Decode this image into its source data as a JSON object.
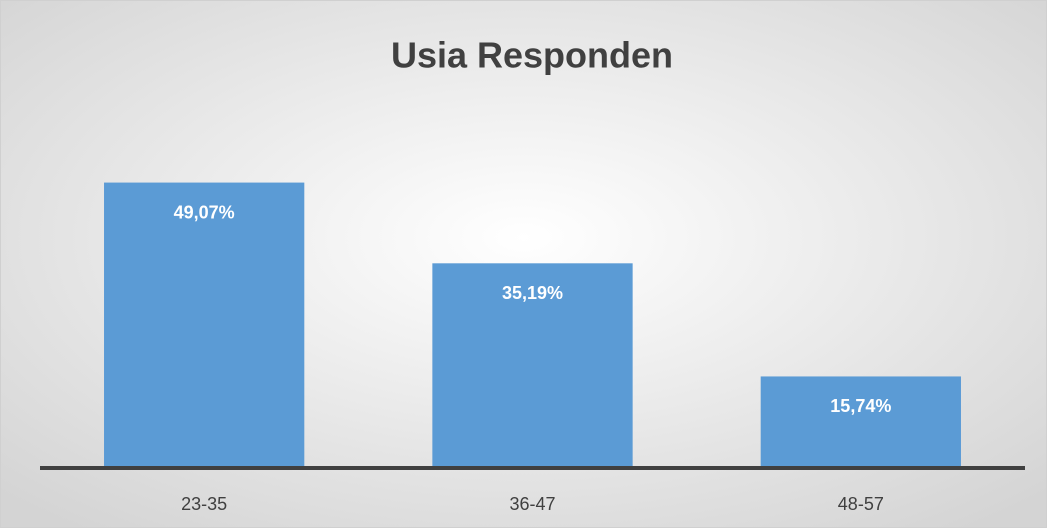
{
  "chart_data": {
    "type": "bar",
    "title": "Usia Responden",
    "categories": [
      "23-35",
      "36-47",
      "48-57"
    ],
    "values": [
      49.07,
      35.19,
      15.74
    ],
    "value_labels": [
      "49,07%",
      "35,19%",
      "15,74%"
    ],
    "color": "#5b9bd5",
    "ylim": [
      0,
      60
    ]
  }
}
